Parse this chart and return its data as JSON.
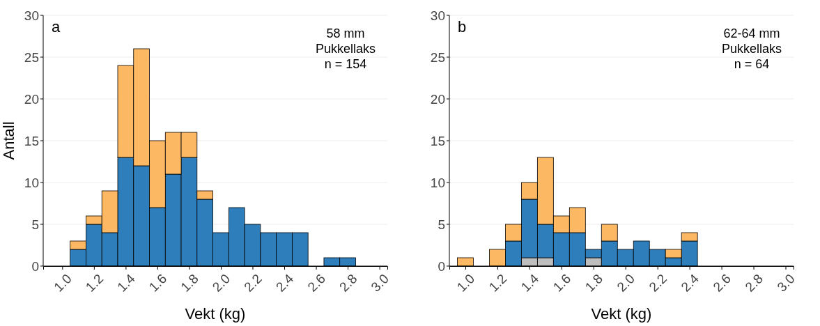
{
  "chart_data": [
    {
      "type": "bar",
      "stacked": true,
      "xlabel": "Vekt (kg)",
      "ylabel": "Antall",
      "annotations": [
        "a",
        "58 mm",
        "Pukkellaks",
        "n = 154"
      ],
      "x": [
        1.1,
        1.2,
        1.3,
        1.4,
        1.5,
        1.6,
        1.7,
        1.8,
        1.9,
        2.0,
        2.1,
        2.2,
        2.3,
        2.4,
        2.5,
        2.7,
        2.8
      ],
      "series": [
        {
          "color": "#2e7ebb",
          "values": [
            2,
            5,
            4,
            13,
            12,
            7,
            11,
            13,
            8,
            4,
            7,
            5,
            4,
            4,
            4,
            1,
            1
          ]
        },
        {
          "color": "#fdb863",
          "values": [
            1,
            1,
            5,
            11,
            14,
            8,
            5,
            3,
            1,
            0,
            0,
            0,
            0,
            0,
            0,
            0,
            0
          ]
        }
      ],
      "xlim": [
        0.88,
        3.05
      ],
      "xticks": [
        {
          "value": 1,
          "label": "1.0"
        },
        1.2,
        1.4,
        1.6,
        1.8,
        {
          "value": 2,
          "label": "2.0"
        },
        2.2,
        2.4,
        2.6,
        2.8,
        {
          "value": 3,
          "label": "3.0"
        }
      ],
      "ylim": [
        0,
        30
      ],
      "yticks": [
        0,
        5,
        10,
        15,
        20,
        25,
        30
      ],
      "grid": "y"
    },
    {
      "type": "bar",
      "stacked": true,
      "xlabel": "Vekt (kg)",
      "annotations": [
        "b",
        "62-64 mm",
        "Pukkellaks",
        "n = 64"
      ],
      "x": [
        1.0,
        1.2,
        1.3,
        1.4,
        1.5,
        1.6,
        1.7,
        1.8,
        1.9,
        2.0,
        2.1,
        2.2,
        2.3,
        2.4
      ],
      "series": [
        {
          "color": "#bebebe",
          "values": [
            0,
            0,
            0,
            1,
            1,
            0,
            0,
            1,
            0,
            0,
            0,
            0,
            0,
            0
          ]
        },
        {
          "color": "#2e7ebb",
          "values": [
            0,
            0,
            3,
            7,
            4,
            4,
            4,
            1,
            3,
            2,
            3,
            2,
            1,
            3
          ]
        },
        {
          "color": "#fdb863",
          "values": [
            1,
            2,
            2,
            2,
            8,
            2,
            3,
            0,
            2,
            0,
            0,
            0,
            1,
            1
          ]
        }
      ],
      "xlim": [
        0.9,
        3.05
      ],
      "xticks": [
        {
          "value": 1,
          "label": "1.0"
        },
        1.2,
        1.4,
        1.6,
        1.8,
        {
          "value": 2,
          "label": "2.0"
        },
        2.2,
        2.4,
        2.6,
        2.8,
        {
          "value": 3,
          "label": "3.0"
        }
      ],
      "ylim": [
        0,
        30
      ],
      "yticks": [
        0,
        5,
        10,
        15,
        20,
        25,
        30
      ],
      "grid": "y"
    }
  ]
}
